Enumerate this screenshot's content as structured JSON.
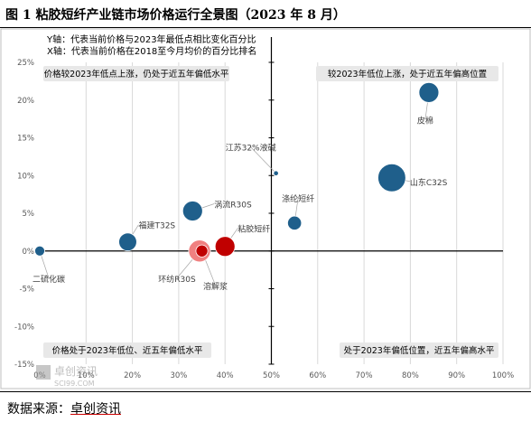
{
  "title": "图 1  粘胶短纤产业链市场价格运行全景图（2023 年 8 月）",
  "source_label": "数据来源：",
  "source_name": "卓创资讯",
  "watermark": {
    "cn": "卓创资讯",
    "en": "SCI99.COM"
  },
  "colors": {
    "blue": "#1f5f8b",
    "red": "#c00000",
    "pink": "#f08080",
    "box_bg": "#e8e8e8",
    "grid": "#d9d9d9",
    "axis": "#000000"
  },
  "chart_data": {
    "type": "scatter",
    "notes": [
      "Y轴：代表当前价格与2023年最低点相比变化百分比",
      "X轴：代表当前价格在2018至今月均价的百分比排名"
    ],
    "xlim": [
      0,
      100
    ],
    "ylim": [
      -15,
      25
    ],
    "xticks": [
      "0%",
      "10%",
      "20%",
      "30%",
      "40%",
      "50%",
      "60%",
      "70%",
      "80%",
      "90%",
      "100%"
    ],
    "yticks": [
      "-15%",
      "-10%",
      "-5%",
      "0%",
      "5%",
      "10%",
      "15%",
      "20%",
      "25%"
    ],
    "grid": "vertical",
    "quadrant_labels": {
      "top_left": "价格较2023年低点上涨，仍处于近五年偏低水平",
      "top_right": "较2023年低位上涨，处于近五年偏高位置",
      "bottom_left": "价格处于2023年低位、近五年偏低水平",
      "bottom_right": "处于2023年偏低位置，近五年偏高水平"
    },
    "points": [
      {
        "label": "皮棉",
        "x": 84,
        "y": 21,
        "size": 10,
        "color": "blue"
      },
      {
        "label": "山东C32S",
        "x": 76,
        "y": 9.7,
        "size": 14,
        "color": "blue"
      },
      {
        "label": "江苏32%液碱",
        "x": 51,
        "y": 10.3,
        "size": 2.5,
        "color": "blue"
      },
      {
        "label": "涤纶短纤",
        "x": 55,
        "y": 3.7,
        "size": 7,
        "color": "blue"
      },
      {
        "label": "涡流R30S",
        "x": 33,
        "y": 5.3,
        "size": 10,
        "color": "blue"
      },
      {
        "label": "福建T32S",
        "x": 19,
        "y": 1.2,
        "size": 9,
        "color": "blue"
      },
      {
        "label": "二硫化碳",
        "x": 0,
        "y": 0,
        "size": 5,
        "color": "blue"
      },
      {
        "label": "粘胶短纤",
        "x": 40,
        "y": 0.6,
        "size": 10,
        "color": "red"
      },
      {
        "label": "环纺R30S",
        "x": 34.5,
        "y": 0,
        "size": 11,
        "color": "pink"
      },
      {
        "label": "溶解浆",
        "x": 35,
        "y": 0,
        "size": 6,
        "color": "red"
      }
    ]
  }
}
